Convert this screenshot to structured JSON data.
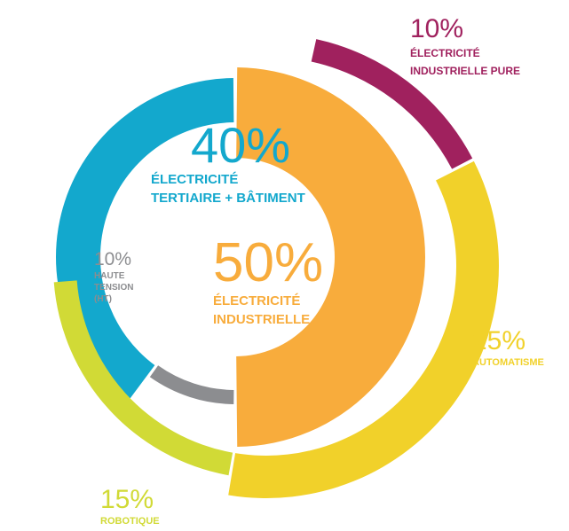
{
  "colors": {
    "teal": "#13A8CD",
    "grey": "#8C8D90",
    "orange": "#F8AC3C",
    "purple": "#A0215E",
    "yellow": "#F1D12A",
    "lime": "#D1DA36"
  },
  "chart_data": {
    "type": "pie",
    "style": "nested donut",
    "inner_ring": [
      {
        "key": "tertiaire",
        "value": 40,
        "percent_label": "40%",
        "name_lines": [
          "ÉLECTRICITÉ",
          "TERTIAIRE + BÂTIMENT"
        ],
        "color": "#13A8CD"
      },
      {
        "key": "haute_tension",
        "value": 10,
        "percent_label": "10%",
        "name_lines": [
          "HAUTE",
          "TENSION",
          "(HT)"
        ],
        "color": "#8C8D90"
      },
      {
        "key": "industrielle",
        "value": 50,
        "percent_label": "50%",
        "name_lines": [
          "ÉLECTRICITÉ",
          "INDUSTRIELLE"
        ],
        "color": "#F8AC3C"
      }
    ],
    "outer_ring": [
      {
        "key": "industrielle_pure",
        "value": 10,
        "percent_label": "10%",
        "name_lines": [
          "ÉLECTRICITÉ",
          "INDUSTRIELLE PURE"
        ],
        "color": "#A0215E"
      },
      {
        "key": "automatisme",
        "value": 25,
        "percent_label": "25%",
        "name_lines": [
          "AUTOMATISME"
        ],
        "color": "#F1D12A"
      },
      {
        "key": "robotique",
        "value": 15,
        "percent_label": "15%",
        "name_lines": [
          "ROBOTIQUE"
        ],
        "color": "#D1DA36"
      }
    ]
  }
}
